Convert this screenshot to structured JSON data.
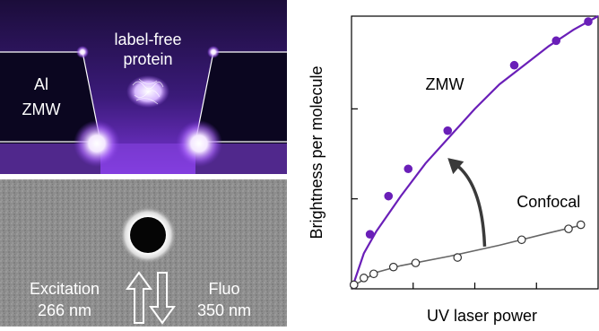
{
  "sim_panel": {
    "label_line1": "label-free",
    "label_line2": "protein",
    "al_label": "Al",
    "zmw_label": "ZMW"
  },
  "sem_panel": {
    "excitation_label": "Excitation",
    "excitation_wavelength": "266 nm",
    "fluo_label": "Fluo",
    "fluo_wavelength": "350 nm"
  },
  "chart_data": {
    "type": "scatter",
    "title": "",
    "xlabel": "UV laser power",
    "ylabel": "Brightness per molecule",
    "xlim": [
      0,
      10
    ],
    "ylim": [
      0,
      10
    ],
    "grid": false,
    "series": [
      {
        "name": "ZMW",
        "color": "#6a1fb8",
        "marker": "filled-circle",
        "x": [
          0.1,
          0.75,
          1.5,
          2.3,
          3.9,
          6.6,
          8.3,
          9.6
        ],
        "y": [
          0.15,
          2.0,
          3.4,
          4.4,
          5.8,
          8.2,
          9.1,
          9.8
        ],
        "fit": "power",
        "fit_points": [
          [
            0.05,
            0.1
          ],
          [
            0.5,
            1.3
          ],
          [
            1,
            2.1
          ],
          [
            2,
            3.4
          ],
          [
            3,
            4.6
          ],
          [
            4,
            5.6
          ],
          [
            5,
            6.6
          ],
          [
            6,
            7.5
          ],
          [
            7,
            8.2
          ],
          [
            8,
            8.9
          ],
          [
            9,
            9.5
          ],
          [
            10,
            10.0
          ]
        ]
      },
      {
        "name": "Confocal",
        "color": "#666666",
        "marker": "open-circle",
        "x": [
          0.1,
          0.5,
          0.9,
          1.7,
          2.6,
          4.3,
          6.9,
          8.8,
          9.3
        ],
        "y": [
          0.15,
          0.4,
          0.55,
          0.8,
          0.95,
          1.15,
          1.8,
          2.2,
          2.35
        ],
        "fit": "linear",
        "fit_points": [
          [
            0.05,
            0.1
          ],
          [
            1,
            0.6
          ],
          [
            2,
            0.85
          ],
          [
            4,
            1.2
          ],
          [
            6,
            1.6
          ],
          [
            8,
            2.05
          ],
          [
            9.4,
            2.35
          ]
        ]
      }
    ],
    "annotation": "arrow from Confocal curve toward ZMW curve"
  }
}
